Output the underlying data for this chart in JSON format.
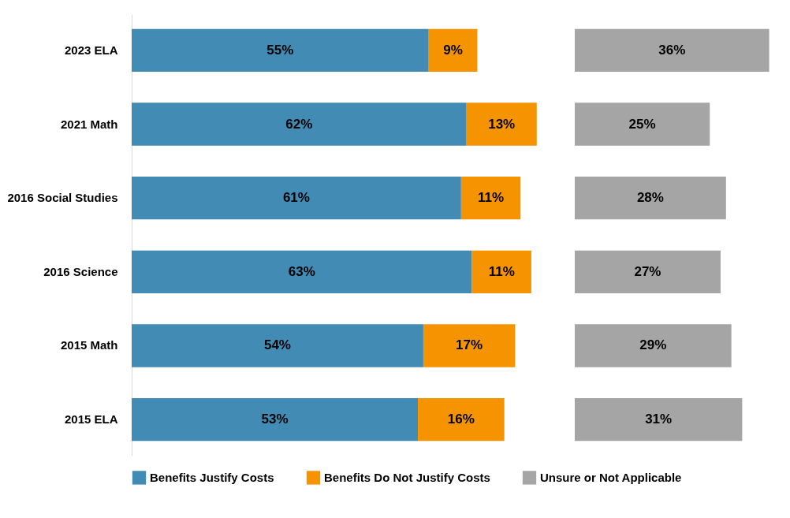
{
  "chart_data": [
    {
      "type": "bar",
      "orientation": "horizontal",
      "stacked": true,
      "legend": "bottom",
      "grid": false,
      "tick_labels": "y",
      "categories": [
        "2023 ELA",
        "2021 Math",
        "2016 Social Studies",
        "2016 Science",
        "2015 Math",
        "2015 ELA"
      ],
      "series": [
        {
          "name": "Benefits Justify Costs",
          "color": "#428bb5",
          "values": [
            55,
            62,
            61,
            63,
            54,
            53
          ],
          "value_labels": [
            "55%",
            "62%",
            "61%",
            "63%",
            "54%",
            "53%"
          ]
        },
        {
          "name": "Benefits Do Not Justify Costs",
          "color": "#f59300",
          "values": [
            9,
            13,
            11,
            11,
            17,
            16
          ],
          "value_labels": [
            "9%",
            "13%",
            "11%",
            "11%",
            "17%",
            "16%"
          ]
        }
      ]
    },
    {
      "type": "bar",
      "orientation": "horizontal",
      "legend": "bottom",
      "grid": false,
      "tick_labels": false,
      "categories": [
        null,
        null,
        null,
        null,
        null,
        null
      ],
      "series": [
        {
          "name": "Unsure or Not Applicable",
          "color": "#a5a5a5",
          "values": [
            36,
            25,
            28,
            27,
            29,
            31
          ],
          "value_labels": [
            "36%",
            "25%",
            "28%",
            "27%",
            "29%",
            "31%"
          ]
        }
      ]
    }
  ]
}
